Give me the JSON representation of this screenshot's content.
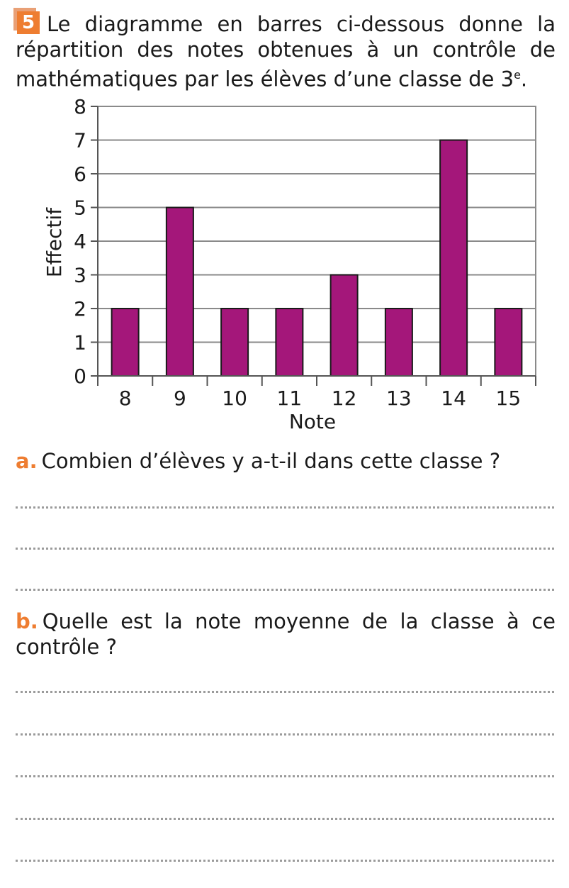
{
  "exercise": {
    "number": "5",
    "intro_text": "Le diagramme en barres ci-dessous donne la répartition des notes obtenues à un contrôle de mathématiques par les élèves d’une classe de 3",
    "intro_sup": "e",
    "intro_end": "."
  },
  "chart_data": {
    "type": "bar",
    "categories": [
      "8",
      "9",
      "10",
      "11",
      "12",
      "13",
      "14",
      "15"
    ],
    "values": [
      2,
      5,
      2,
      2,
      3,
      2,
      7,
      2
    ],
    "xlabel": "Note",
    "ylabel": "Effectif",
    "ylim": [
      0,
      8
    ],
    "yticks": [
      0,
      1,
      2,
      3,
      4,
      5,
      6,
      7,
      8
    ],
    "grid": true,
    "bar_color": "#a4177a"
  },
  "questions": [
    {
      "label": "a.",
      "text": "Combien d’élèves y a-t-il dans cette classe ?"
    },
    {
      "label": "b.",
      "text": "Quelle est la note moyenne de la classe à ce contrôle ?"
    }
  ],
  "colors": {
    "accent": "#ee7d31"
  }
}
